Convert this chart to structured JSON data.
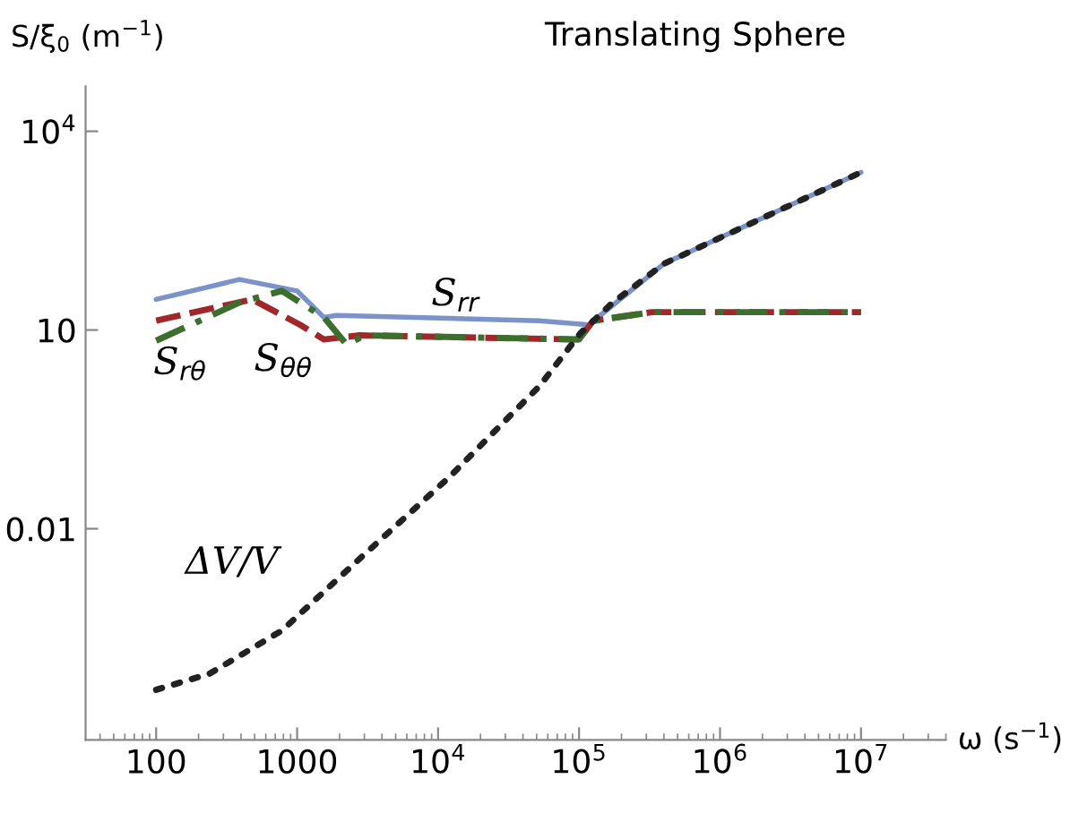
{
  "chart_data": {
    "type": "line",
    "title": "Translating Sphere",
    "xlabel": "ω (s$^{−1}$)",
    "ylabel": "S/ξ$_{0}$ (m$^{−1}$)",
    "log": "xy",
    "grid": false,
    "legend": false,
    "xlim": [
      31.6,
      40000000
    ],
    "ylim": [
      6.5e-06,
      48000
    ],
    "xticks": [
      100,
      1000,
      {
        "value": 10000,
        "label": "10$^{4}$"
      },
      {
        "value": 100000,
        "label": "10$^{5}$"
      },
      {
        "value": 1000000,
        "label": "10$^{6}$"
      },
      {
        "value": 10000000,
        "label": "10$^{7}$"
      }
    ],
    "yticks": [
      0.01,
      10,
      {
        "value": 10000,
        "label": "10$^{4}$"
      }
    ],
    "series": [
      {
        "name": "S$_{rr}$",
        "color": "#7b93c9",
        "line_style": "solid",
        "x": [
          100,
          390,
          1000,
          1550,
          1900,
          52000,
          117000,
          400000,
          10000000
        ],
        "values": [
          29,
          58,
          39,
          15.5,
          16.6,
          13.8,
          12,
          100,
          2400
        ]
      },
      {
        "name": "S$_{θθ}$",
        "color": "#a0282a",
        "line_style": "dashed",
        "x": [
          100,
          480,
          1050,
          1550,
          2770,
          100000,
          126000,
          330000,
          10000000
        ],
        "values": [
          13.8,
          29,
          12,
          7.2,
          8.3,
          7.2,
          13.8,
          18.6,
          18.6
        ]
      },
      {
        "name": "S$_{rθ}$",
        "color": "#3c6e2e",
        "line_style": "dashdot",
        "x": [
          100,
          390,
          780,
          1550,
          2250,
          3000,
          100000,
          126000,
          330000,
          10000000
        ],
        "values": [
          6.9,
          26,
          39,
          15.5,
          6,
          8.3,
          7.2,
          13.8,
          18.6,
          18.6
        ]
      },
      {
        "name": "ΔV/V",
        "color": "#222222",
        "line_style": "dotted",
        "x": [
          100,
          240,
          780,
          2770,
          12000,
          29000,
          52000,
          102000,
          170000,
          400000,
          10000000
        ],
        "values": [
          3.7e-05,
          6.5e-05,
          0.00029,
          0.0035,
          0.06,
          0.4,
          1.4,
          8.9,
          25,
          100,
          2400
        ]
      }
    ]
  }
}
